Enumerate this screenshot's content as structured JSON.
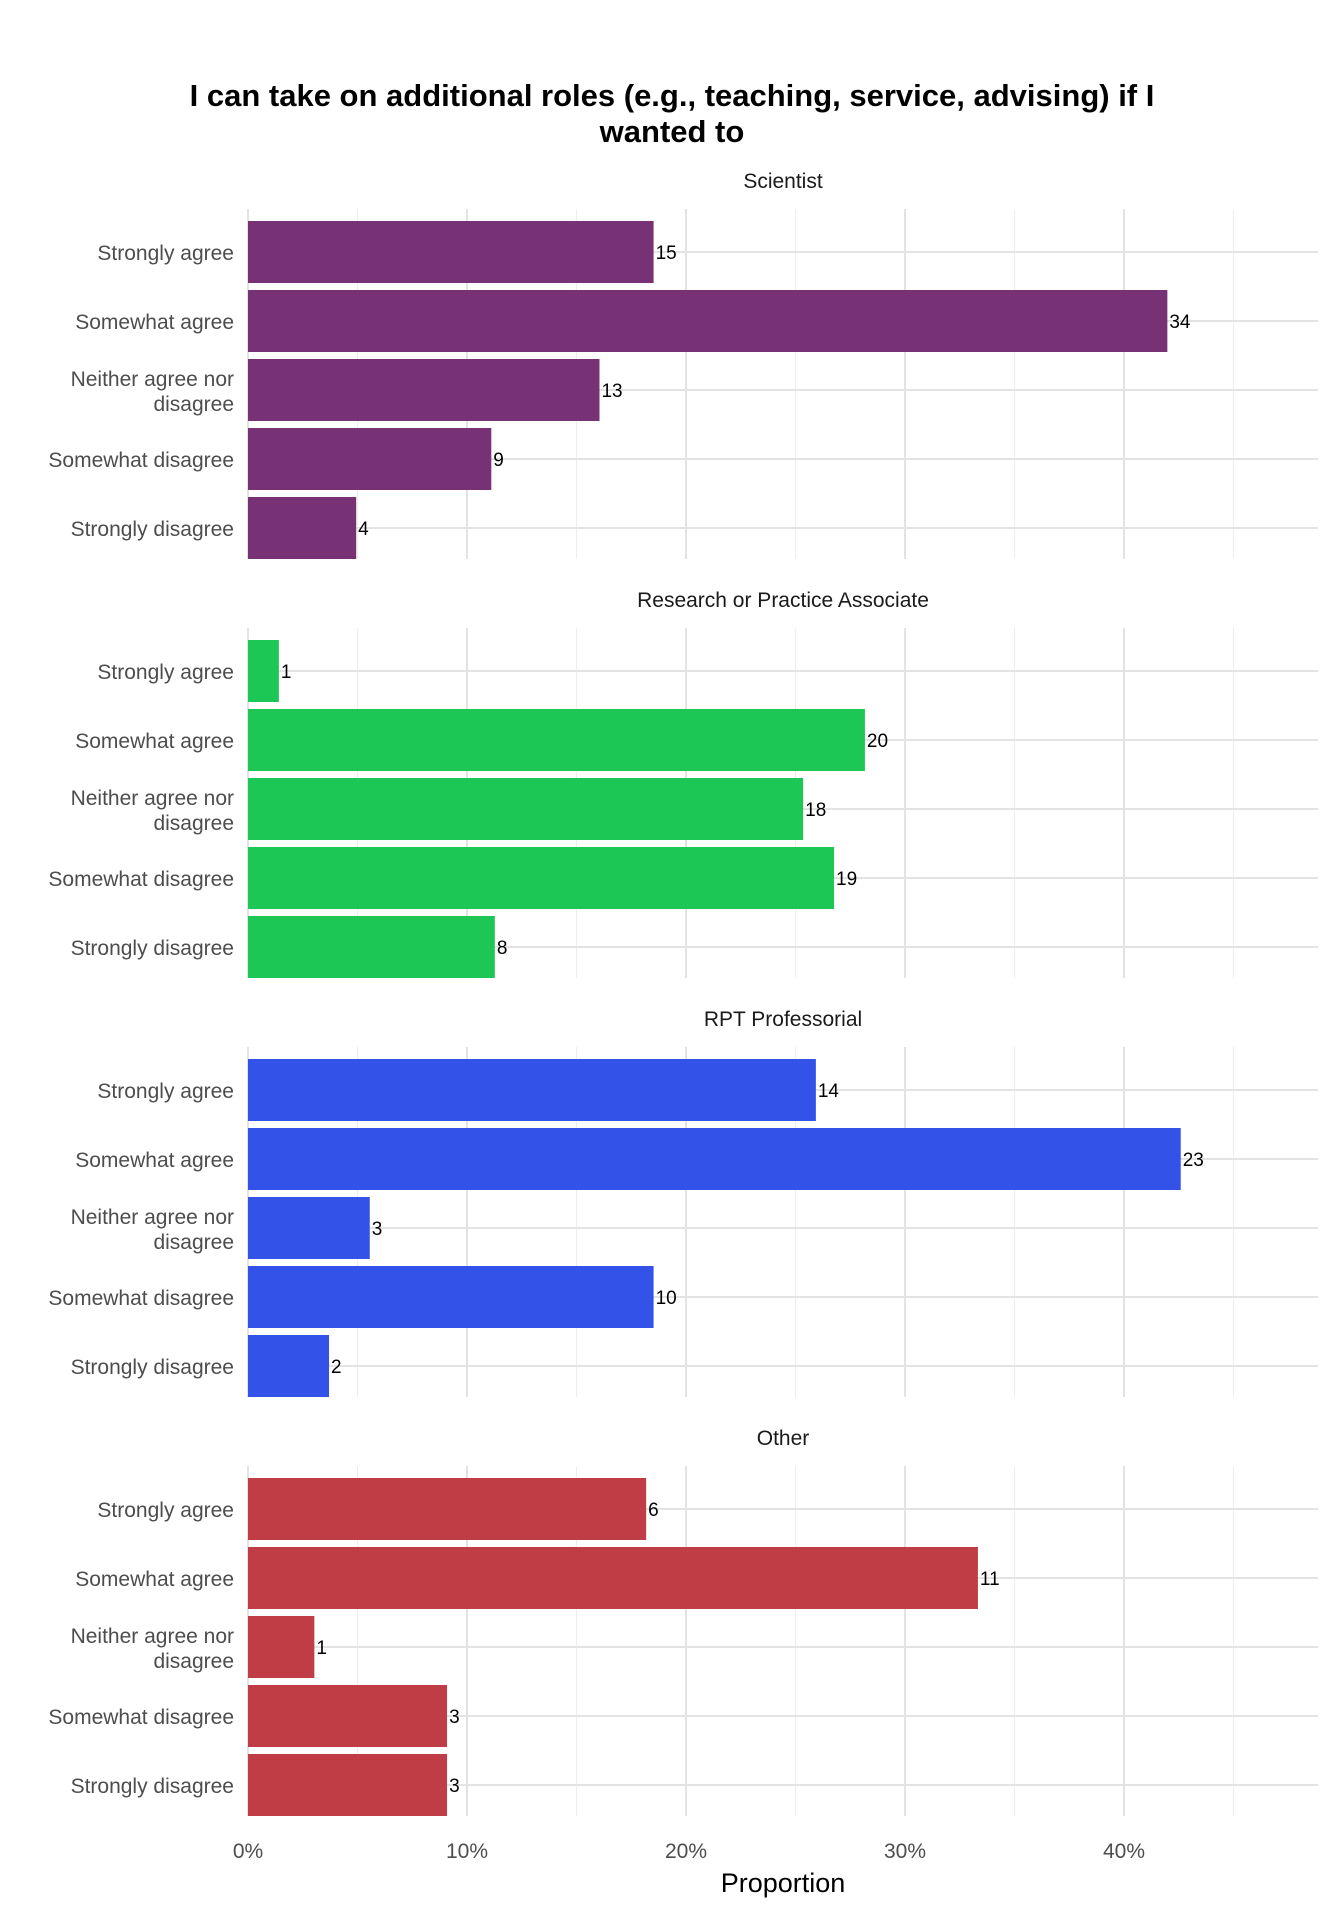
{
  "chart_data": {
    "type": "bar",
    "orientation": "horizontal",
    "title": "I can take on additional roles (e.g., teaching, service, advising) if I wanted to",
    "title_lines": [
      "I can take on additional roles (e.g., teaching, service, advising) if I",
      "wanted to"
    ],
    "xlabel": "Proportion",
    "ylabel": "",
    "xlim": [
      0,
      0.49
    ],
    "x_ticks": [
      0,
      0.1,
      0.2,
      0.3,
      0.4
    ],
    "x_tick_labels": [
      "0%",
      "10%",
      "20%",
      "30%",
      "40%"
    ],
    "grid": true,
    "legend": "none",
    "categories": [
      "Strongly agree",
      "Somewhat agree",
      "Neither agree nor disagree",
      "Somewhat disagree",
      "Strongly disagree"
    ],
    "category_label_lines": [
      [
        "Strongly agree"
      ],
      [
        "Somewhat agree"
      ],
      [
        "Neither agree nor",
        "disagree"
      ],
      [
        "Somewhat disagree"
      ],
      [
        "Strongly disagree"
      ]
    ],
    "panels": [
      {
        "name": "Scientist",
        "color": "#773175",
        "counts": [
          15,
          34,
          13,
          9,
          4
        ],
        "proportions": [
          0.1852,
          0.4198,
          0.1605,
          0.1111,
          0.0494
        ]
      },
      {
        "name": "Research or Practice Associate",
        "color": "#1dc755",
        "counts": [
          1,
          20,
          18,
          19,
          8
        ],
        "proportions": [
          0.0141,
          0.2817,
          0.2535,
          0.2676,
          0.1127
        ]
      },
      {
        "name": "RPT Professorial",
        "color": "#3352e8",
        "counts": [
          14,
          23,
          3,
          10,
          2
        ],
        "proportions": [
          0.2593,
          0.4259,
          0.0556,
          0.1852,
          0.037
        ]
      },
      {
        "name": "Other",
        "color": "#c03d45",
        "counts": [
          6,
          11,
          1,
          3,
          3
        ],
        "proportions": [
          0.1818,
          0.3333,
          0.0303,
          0.0909,
          0.0909
        ]
      }
    ]
  }
}
